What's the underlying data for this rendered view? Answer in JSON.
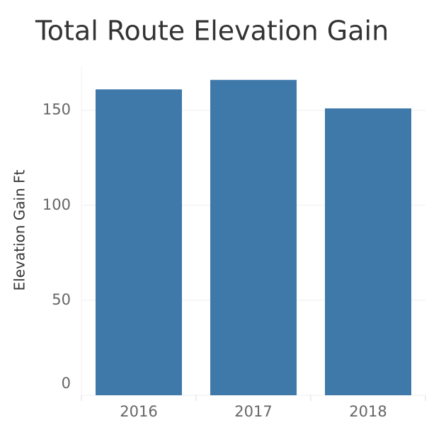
{
  "chart_data": {
    "type": "bar",
    "title": "Total Route Elevation Gain",
    "y_label": "Elevation Gain Ft",
    "categories": [
      "2016",
      "2017",
      "2018"
    ],
    "values": [
      161,
      166,
      151
    ],
    "color": "#3f79aa",
    "ylim": [
      0,
      173
    ],
    "yticks": [
      0,
      50,
      100,
      150
    ],
    "grid": true
  }
}
